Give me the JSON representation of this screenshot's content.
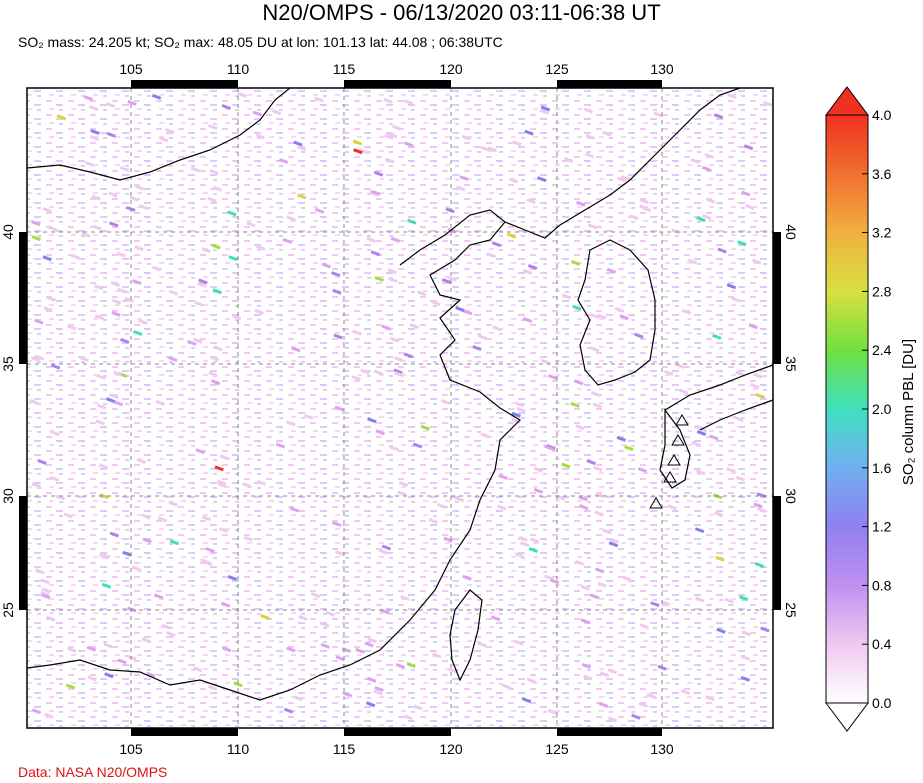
{
  "title": "N20/OMPS - 06/13/2020 03:11-06:38 UT",
  "subtitle": "SO₂ mass: 24.205 kt; SO₂ max: 48.05 DU at lon: 101.13 lat: 44.08 ; 06:38UTC",
  "credit": "Data: NASA N20/OMPS",
  "map": {
    "lon_ticks": [
      "105",
      "110",
      "115",
      "120",
      "125",
      "130"
    ],
    "lat_ticks": [
      "40",
      "35",
      "30",
      "25"
    ]
  },
  "colorbar": {
    "label": "SO₂ column PBL [DU]",
    "ticks": [
      "4.0",
      "3.6",
      "3.2",
      "2.8",
      "2.4",
      "2.0",
      "1.6",
      "1.2",
      "0.8",
      "0.4",
      "0.0"
    ],
    "colors": [
      "#f03020",
      "#f06020",
      "#f0a030",
      "#e0d040",
      "#a0e040",
      "#50e050",
      "#40e0b0",
      "#60c0f0",
      "#8080f0",
      "#b080f0",
      "#e0a0f0",
      "#f0c8f0",
      "#ffffff"
    ]
  }
}
